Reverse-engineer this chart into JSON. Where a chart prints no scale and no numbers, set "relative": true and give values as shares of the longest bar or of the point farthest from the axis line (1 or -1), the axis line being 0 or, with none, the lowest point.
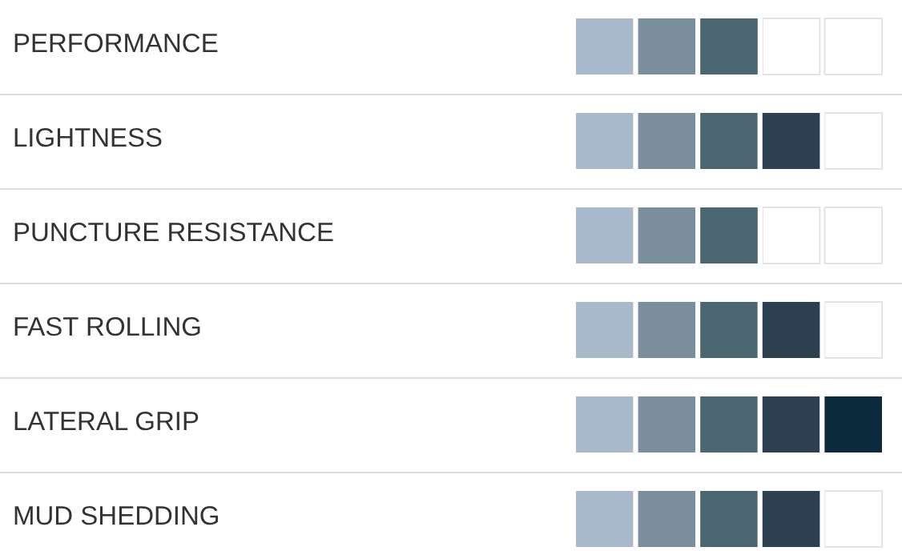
{
  "chart_data": {
    "type": "bar",
    "orientation": "horizontal",
    "stacked": true,
    "relative": true,
    "tick_labels": "y",
    "grid": false,
    "categories": [
      "PERFORMANCE",
      "LIGHTNESS",
      "PUNCTURE RESISTANCE",
      "FAST ROLLING",
      "LATERAL GRIP",
      "MUD SHEDDING"
    ],
    "series": [
      {
        "color": "#a9b9cc",
        "values": [
          0.2,
          0.2,
          0.2,
          0.2,
          0.2,
          0.2
        ]
      },
      {
        "color": "#7a8f9b",
        "values": [
          0.2,
          0.2,
          0.2,
          0.2,
          0.2,
          0.2
        ]
      },
      {
        "color": "#4b6670",
        "values": [
          0.2,
          0.2,
          0.2,
          0.2,
          0.2,
          0.2
        ]
      },
      {
        "color": "#2c4052",
        "values": [
          null,
          0.2,
          null,
          0.2,
          0.2,
          0.2
        ]
      },
      {
        "color": "#0b2a3b",
        "values": [
          null,
          null,
          null,
          null,
          0.2,
          null
        ]
      }
    ]
  }
}
